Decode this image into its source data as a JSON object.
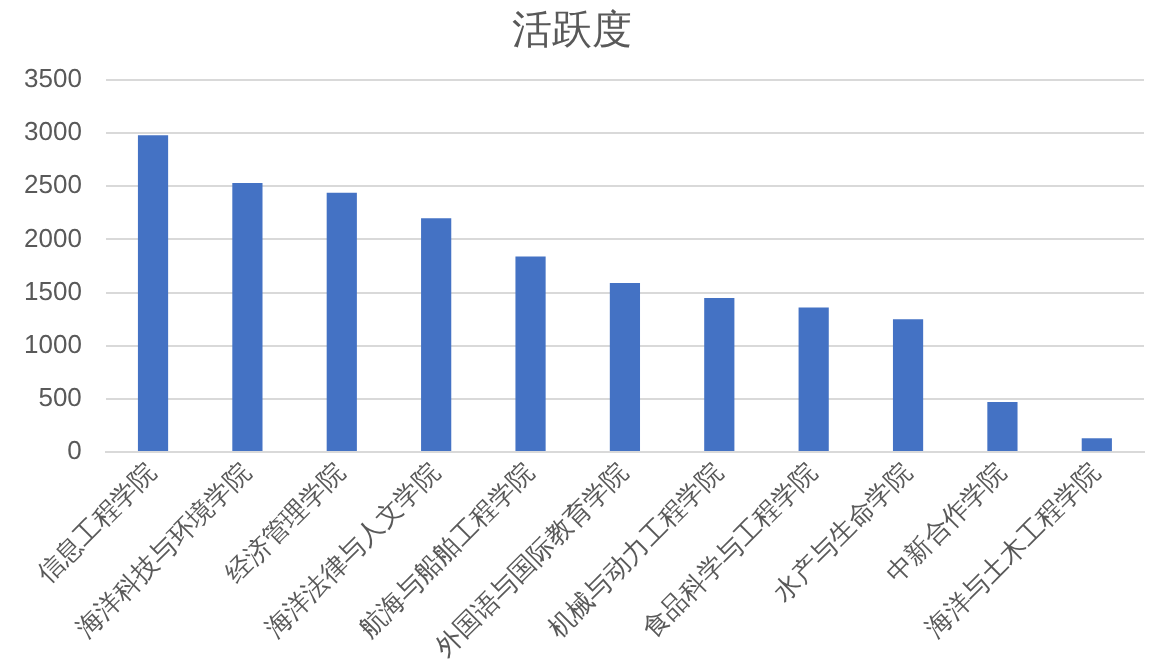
{
  "chart_data": {
    "type": "bar",
    "title": "活跃度",
    "categories": [
      "信息工程学院",
      "海洋科技与环境学院",
      "经济管理学院",
      "海洋法律与人文学院",
      "航海与船舶工程学院",
      "外国语与国际教育学院",
      "机械与动力工程学院",
      "食品科学与工程学院",
      "水产与生命学院",
      "中新合作学院",
      "海洋与土木工程学院"
    ],
    "values": [
      2980,
      2530,
      2440,
      2200,
      1840,
      1590,
      1450,
      1360,
      1250,
      470,
      130
    ],
    "color": "#4472c4",
    "ylim": [
      0,
      3500
    ],
    "yticks": [
      0,
      500,
      1000,
      1500,
      2000,
      2500,
      3000,
      3500
    ],
    "grid": "y",
    "legend": false
  }
}
